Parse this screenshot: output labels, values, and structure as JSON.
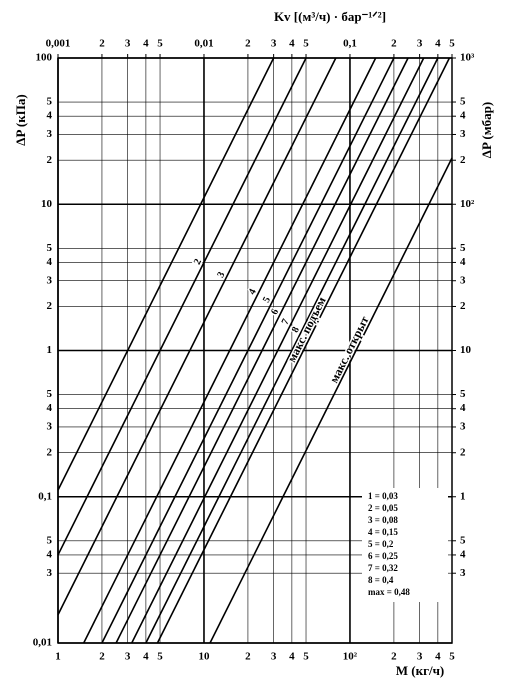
{
  "chart_data": {
    "type": "line",
    "xlabel": "M (кг/ч)",
    "x2label": "Kv [(м³/ч) · бар⁻¹ᐟ²]",
    "ylabel": "ΔP (кПа)",
    "y2label": "ΔP (мбар)",
    "log_x": true,
    "log_y": true,
    "grid": true,
    "xlim": [
      1,
      500
    ],
    "xticks": [
      1,
      2,
      3,
      4,
      5,
      10,
      {
        "value": 20,
        "label": "2"
      },
      {
        "value": 30,
        "label": "3"
      },
      {
        "value": 40,
        "label": "4"
      },
      {
        "value": 50,
        "label": "5"
      },
      {
        "value": 100,
        "label": "10²"
      },
      {
        "value": 200,
        "label": "2"
      },
      {
        "value": 300,
        "label": "3"
      },
      {
        "value": 400,
        "label": "4"
      },
      {
        "value": 500,
        "label": "5"
      }
    ],
    "x2lim": [
      0.001,
      0.5
    ],
    "x2ticks": [
      {
        "value": 0.001,
        "label": "0,001"
      },
      {
        "value": 0.002,
        "label": "2"
      },
      {
        "value": 0.003,
        "label": "3"
      },
      {
        "value": 0.004,
        "label": "4"
      },
      {
        "value": 0.005,
        "label": "5"
      },
      {
        "value": 0.01,
        "label": "0,01"
      },
      {
        "value": 0.02,
        "label": "2"
      },
      {
        "value": 0.03,
        "label": "3"
      },
      {
        "value": 0.04,
        "label": "4"
      },
      {
        "value": 0.05,
        "label": "5"
      },
      {
        "value": 0.1,
        "label": "0,1"
      },
      {
        "value": 0.2,
        "label": "2"
      },
      {
        "value": 0.3,
        "label": "3"
      },
      {
        "value": 0.4,
        "label": "4"
      },
      {
        "value": 0.5,
        "label": "5"
      }
    ],
    "ylim": [
      0.01,
      100
    ],
    "yticks": [
      {
        "value": 0.01,
        "label": "0,01"
      },
      {
        "value": 0.03,
        "label": "3"
      },
      {
        "value": 0.04,
        "label": "4"
      },
      {
        "value": 0.05,
        "label": "5"
      },
      {
        "value": 0.1,
        "label": "0,1"
      },
      {
        "value": 0.2,
        "label": "2"
      },
      {
        "value": 0.3,
        "label": "3"
      },
      {
        "value": 0.4,
        "label": "4"
      },
      {
        "value": 0.5,
        "label": "5"
      },
      1,
      2,
      3,
      4,
      5,
      10,
      {
        "value": 20,
        "label": "2"
      },
      {
        "value": 30,
        "label": "3"
      },
      {
        "value": 40,
        "label": "4"
      },
      {
        "value": 50,
        "label": "5"
      },
      100
    ],
    "y2lim": [
      0.1,
      1000
    ],
    "y2ticks": [
      {
        "value": 0.3,
        "label": "3"
      },
      {
        "value": 0.4,
        "label": "4"
      },
      {
        "value": 0.5,
        "label": "5"
      },
      1,
      2,
      3,
      4,
      5,
      10,
      {
        "value": 20,
        "label": "2"
      },
      {
        "value": 30,
        "label": "3"
      },
      {
        "value": 40,
        "label": "4"
      },
      {
        "value": 50,
        "label": "5"
      },
      {
        "value": 100,
        "label": "10²"
      },
      {
        "value": 200,
        "label": "2"
      },
      {
        "value": 300,
        "label": "3"
      },
      {
        "value": 400,
        "label": "4"
      },
      {
        "value": 500,
        "label": "5"
      },
      {
        "value": 1000,
        "label": "10³"
      }
    ],
    "series": [
      {
        "color": "#000000",
        "x": [
          1,
          30
        ],
        "values": [
          0.111,
          100
        ]
      },
      {
        "name": "2",
        "color": "#000000",
        "x": [
          1,
          50
        ],
        "values": [
          0.04,
          100
        ]
      },
      {
        "name": "3",
        "color": "#000000",
        "x": [
          1,
          80
        ],
        "values": [
          0.0156,
          100
        ]
      },
      {
        "name": "4",
        "color": "#000000",
        "x": [
          1.5,
          150
        ],
        "values": [
          0.01,
          100
        ]
      },
      {
        "name": "5",
        "color": "#000000",
        "x": [
          2,
          200
        ],
        "values": [
          0.01,
          100
        ]
      },
      {
        "name": "6",
        "color": "#000000",
        "x": [
          2.5,
          250
        ],
        "values": [
          0.01,
          100
        ]
      },
      {
        "name": "7",
        "color": "#000000",
        "x": [
          3.2,
          320
        ],
        "values": [
          0.01,
          100
        ]
      },
      {
        "name": "8",
        "color": "#000000",
        "x": [
          4,
          400
        ],
        "values": [
          0.01,
          100
        ]
      },
      {
        "name": "макс. подъем",
        "color": "#000000",
        "x": [
          4.8,
          480
        ],
        "values": [
          0.01,
          100
        ]
      },
      {
        "name": "макс. открыт",
        "color": "#000000",
        "x": [
          11,
          500
        ],
        "values": [
          0.01,
          20.7
        ]
      }
    ],
    "legend_text": [
      "1 = 0,03",
      "2 = 0,05",
      "3 = 0,08",
      "4 = 0,15",
      "5 = 0,2",
      "6 = 0,25",
      "7 = 0,32",
      "8 = 0,4",
      "max = 0,48"
    ]
  }
}
